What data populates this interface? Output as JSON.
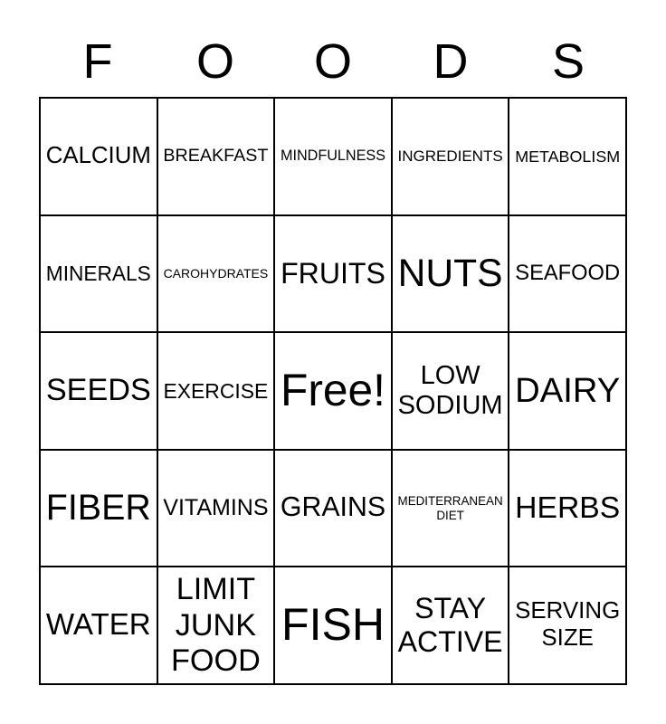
{
  "title": {
    "letters": [
      "F",
      "O",
      "O",
      "D",
      "S"
    ]
  },
  "card": {
    "rows": [
      [
        "CALCIUM",
        "BREAKFAST",
        "MINDFULNESS",
        "INGREDIENTS",
        "METABOLISM"
      ],
      [
        "MINERALS",
        "CAROHYDRATES",
        "FRUITS",
        "NUTS",
        "SEAFOOD"
      ],
      [
        "SEEDS",
        "EXERCISE",
        "Free!",
        "LOW SODIUM",
        "DAIRY"
      ],
      [
        "FIBER",
        "VITAMINS",
        "GRAINS",
        "MEDITERRANEAN DIET",
        "HERBS"
      ],
      [
        "WATER",
        "LIMIT JUNK FOOD",
        "FISH",
        "STAY ACTIVE",
        "SERVING SIZE"
      ]
    ],
    "free_cell": {
      "row": 2,
      "col": 2,
      "label": "Free!"
    }
  },
  "colors": {
    "background": "#ffffff",
    "text": "#000000",
    "grid_border": "#000000"
  }
}
